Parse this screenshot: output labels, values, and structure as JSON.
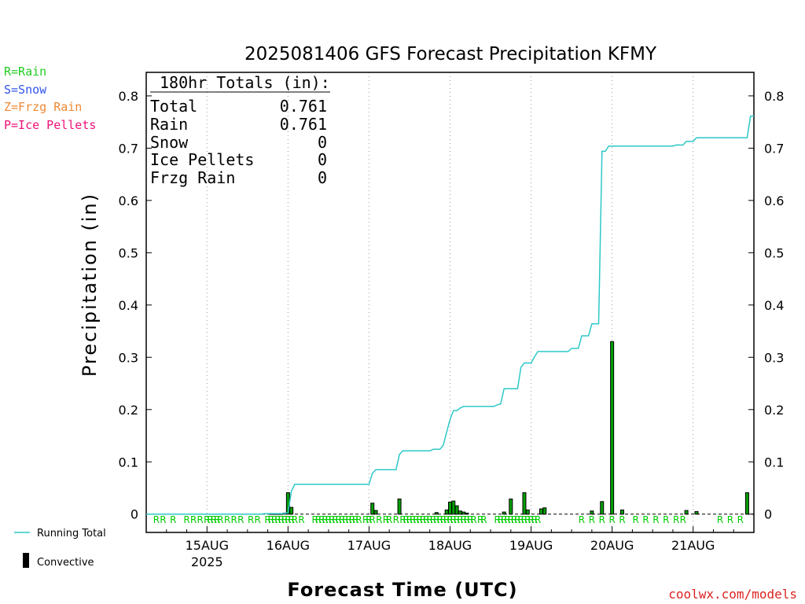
{
  "chart_data": {
    "type": "bar",
    "title": "2025081406 GFS Forecast Precipitation KFMY",
    "xlabel": "Forecast Time (UTC)",
    "ylabel": "Precipitation (in)",
    "ylim": [
      -0.035,
      0.845
    ],
    "yticks": [
      0,
      0.1,
      0.2,
      0.3,
      0.4,
      0.5,
      0.6,
      0.7,
      0.8
    ],
    "ytick_labels": [
      "0",
      "0.1",
      "0.2",
      "0.3",
      "0.4",
      "0.5",
      "0.6",
      "0.7",
      "0.8"
    ],
    "x_unit": "forecast hour",
    "xlim": [
      0,
      180
    ],
    "xticks": [
      {
        "hour": 18,
        "label": "15AUG",
        "sublabel": "2025"
      },
      {
        "hour": 42,
        "label": "16AUG",
        "sublabel": ""
      },
      {
        "hour": 66,
        "label": "17AUG",
        "sublabel": ""
      },
      {
        "hour": 90,
        "label": "18AUG",
        "sublabel": ""
      },
      {
        "hour": 114,
        "label": "19AUG",
        "sublabel": ""
      },
      {
        "hour": 138,
        "label": "20AUG",
        "sublabel": ""
      },
      {
        "hour": 162,
        "label": "21AUG",
        "sublabel": ""
      }
    ],
    "grid": "dotted vertical lines at day boundaries",
    "legend_placement": "bottom-left",
    "series": [
      {
        "name": "Running Total",
        "type": "line",
        "color": "#2ec8c8",
        "x": [
          0,
          34,
          35,
          36,
          37,
          38,
          39,
          40,
          41,
          42,
          43,
          44,
          45,
          66,
          67,
          68,
          69,
          70,
          71,
          72,
          73,
          74,
          75,
          76,
          77,
          78,
          79,
          84,
          85,
          86,
          87,
          88,
          89,
          90,
          91,
          92,
          93,
          94,
          95,
          96,
          102,
          103,
          104,
          105,
          106,
          107,
          108,
          109,
          110,
          111,
          112,
          113,
          114,
          115,
          116,
          117,
          118,
          119,
          120,
          121,
          122,
          123,
          124,
          125,
          126,
          127,
          128,
          129,
          130,
          131,
          132,
          133,
          134,
          135,
          136,
          137,
          138,
          139,
          140,
          141,
          142,
          156,
          157,
          158,
          159,
          160,
          161,
          162,
          163,
          177,
          178,
          179,
          180
        ],
        "values": [
          0,
          0,
          0.001,
          0.001,
          0.001,
          0.001,
          0.001,
          0.001,
          0.001,
          0.003,
          0.044,
          0.057,
          0.057,
          0.057,
          0.078,
          0.085,
          0.085,
          0.085,
          0.085,
          0.085,
          0.085,
          0.085,
          0.114,
          0.121,
          0.121,
          0.121,
          0.121,
          0.121,
          0.124,
          0.124,
          0.124,
          0.132,
          0.157,
          0.181,
          0.198,
          0.198,
          0.203,
          0.206,
          0.206,
          0.206,
          0.206,
          0.206,
          0.209,
          0.211,
          0.24,
          0.24,
          0.24,
          0.24,
          0.24,
          0.281,
          0.289,
          0.289,
          0.289,
          0.301,
          0.311,
          0.311,
          0.311,
          0.311,
          0.311,
          0.311,
          0.311,
          0.311,
          0.311,
          0.311,
          0.317,
          0.317,
          0.317,
          0.341,
          0.341,
          0.341,
          0.364,
          0.364,
          0.364,
          0.694,
          0.694,
          0.704,
          0.704,
          0.704,
          0.704,
          0.704,
          0.704,
          0.704,
          0.706,
          0.706,
          0.706,
          0.713,
          0.713,
          0.713,
          0.72,
          0.72,
          0.72,
          0.761,
          0.761
        ]
      },
      {
        "name": "Convective",
        "type": "bar",
        "color": "#000000",
        "fill": "#00a000",
        "x": [
          37,
          38,
          39,
          40,
          41,
          42,
          43,
          67,
          68,
          75,
          86,
          89,
          90,
          91,
          92,
          93,
          94,
          95,
          106,
          108,
          112,
          113,
          117,
          118,
          132,
          135,
          138,
          141,
          160,
          163,
          178
        ],
        "values": [
          0.001,
          0.001,
          0.001,
          0.001,
          0.002,
          0.041,
          0.013,
          0.021,
          0.007,
          0.029,
          0.003,
          0.008,
          0.023,
          0.025,
          0.016,
          0.006,
          0.004,
          0.002,
          0.004,
          0.029,
          0.041,
          0.008,
          0.01,
          0.012,
          0.006,
          0.024,
          0.33,
          0.008,
          0.007,
          0.005,
          0.041
        ]
      }
    ],
    "precip_type_markers": {
      "symbol": "R",
      "color": "#00cc00",
      "hours": [
        3,
        5,
        8,
        12,
        14,
        16,
        18,
        19,
        20,
        21,
        22,
        24,
        26,
        28,
        31,
        33,
        36,
        37,
        38,
        39,
        40,
        41,
        42,
        43,
        44,
        46,
        50,
        51,
        52,
        53,
        54,
        55,
        56,
        57,
        58,
        59,
        60,
        61,
        62,
        63,
        65,
        66,
        67,
        69,
        71,
        72,
        74,
        76,
        77,
        78,
        79,
        80,
        81,
        82,
        83,
        84,
        85,
        86,
        87,
        88,
        89,
        90,
        91,
        92,
        93,
        94,
        95,
        96,
        97,
        99,
        100,
        104,
        105,
        106,
        107,
        108,
        109,
        110,
        111,
        112,
        113,
        114,
        115,
        116,
        129,
        132,
        135,
        138,
        141,
        145,
        148,
        151,
        154,
        157,
        159,
        170,
        173,
        176
      ]
    }
  },
  "totals_box": {
    "header": "180hr Totals (in):",
    "rows": [
      {
        "label": "Total",
        "value": "0.761"
      },
      {
        "label": "Rain",
        "value": "0.761"
      },
      {
        "label": "Snow",
        "value": "0"
      },
      {
        "label": "Ice Pellets",
        "value": "0"
      },
      {
        "label": "Frzg Rain",
        "value": "0"
      }
    ]
  },
  "type_legend": [
    {
      "text": "R=Rain",
      "color": "#22cc22"
    },
    {
      "text": "S=Snow",
      "color": "#3355ee"
    },
    {
      "text": "Z=Frzg Rain",
      "color": "#ee8833"
    },
    {
      "text": "P=Ice Pellets",
      "color": "#ee1177"
    }
  ],
  "series_legend": {
    "running_total": "Running Total",
    "convective": "Convective"
  },
  "credit": "coolwx.com/models"
}
